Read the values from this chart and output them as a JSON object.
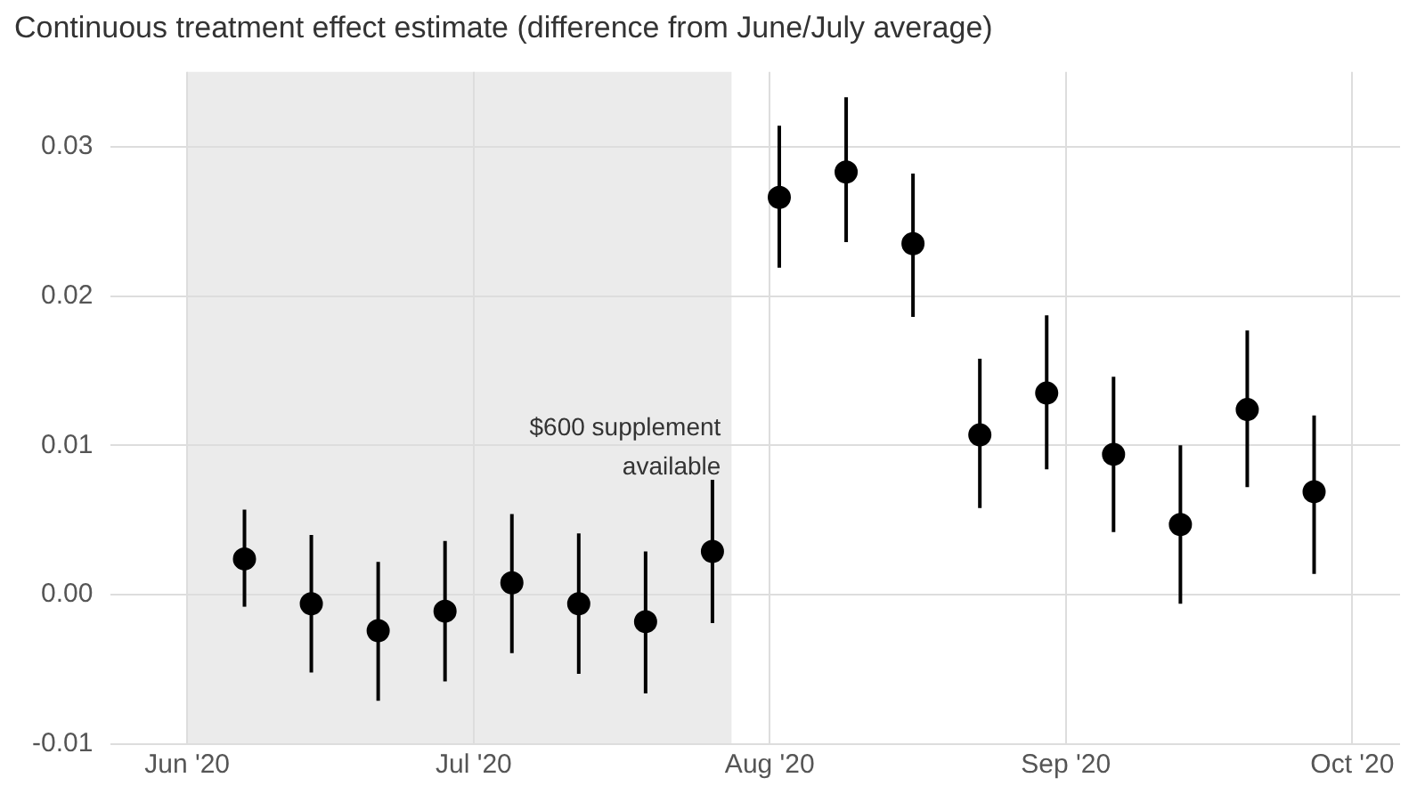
{
  "chart_data": {
    "type": "scatter",
    "title": "Continuous treatment effect estimate (difference from June/July average)",
    "x": [
      "2020-06-07",
      "2020-06-14",
      "2020-06-21",
      "2020-06-28",
      "2020-07-05",
      "2020-07-12",
      "2020-07-19",
      "2020-07-26",
      "2020-08-02",
      "2020-08-09",
      "2020-08-16",
      "2020-08-23",
      "2020-08-30",
      "2020-09-06",
      "2020-09-13",
      "2020-09-20",
      "2020-09-27"
    ],
    "series": [
      {
        "color": "#000000",
        "values": [
          0.0024,
          -0.0006,
          -0.0024,
          -0.0011,
          0.0008,
          -0.0006,
          -0.0018,
          0.0029,
          0.0266,
          0.0283,
          0.0235,
          0.0107,
          0.0135,
          0.0094,
          0.0047,
          0.0124,
          0.0069
        ],
        "errors": [
          [
            -0.0008,
            0.0057
          ],
          [
            -0.0052,
            0.004
          ],
          [
            -0.0071,
            0.0022
          ],
          [
            -0.0058,
            0.0036
          ],
          [
            -0.0039,
            0.0054
          ],
          [
            -0.0053,
            0.0041
          ],
          [
            -0.0066,
            0.0029
          ],
          [
            -0.0019,
            0.0077
          ],
          [
            0.0219,
            0.0314
          ],
          [
            0.0236,
            0.0333
          ],
          [
            0.0186,
            0.0282
          ],
          [
            0.0058,
            0.0158
          ],
          [
            0.0084,
            0.0187
          ],
          [
            0.0042,
            0.0146
          ],
          [
            -0.0006,
            0.01
          ],
          [
            0.0072,
            0.0177
          ],
          [
            0.0014,
            0.012
          ]
        ]
      }
    ],
    "xlim": [
      "2020-05-24",
      "2020-10-06"
    ],
    "xticks": [
      {
        "value": "2020-06-01",
        "label": "Jun '20"
      },
      {
        "value": "2020-07-01",
        "label": "Jul '20"
      },
      {
        "value": "2020-08-01",
        "label": "Aug '20"
      },
      {
        "value": "2020-09-01",
        "label": "Sep '20"
      },
      {
        "value": "2020-10-01",
        "label": "Oct '20"
      }
    ],
    "ylim": [
      -0.01,
      0.035
    ],
    "yticks": [
      {
        "value": -0.01,
        "label": "-0.01"
      },
      {
        "value": 0,
        "label": "0.00"
      },
      {
        "value": 0.01,
        "label": "0.01"
      },
      {
        "value": 0.02,
        "label": "0.02"
      },
      {
        "value": 0.03,
        "label": "0.03"
      }
    ],
    "bands": [
      {
        "axis": "x",
        "from": "2020-06-01",
        "to": "2020-07-28",
        "label": "$600 supplement available",
        "color": "#ebebeb"
      }
    ],
    "grid": true,
    "legend": false,
    "marker": "circle"
  }
}
